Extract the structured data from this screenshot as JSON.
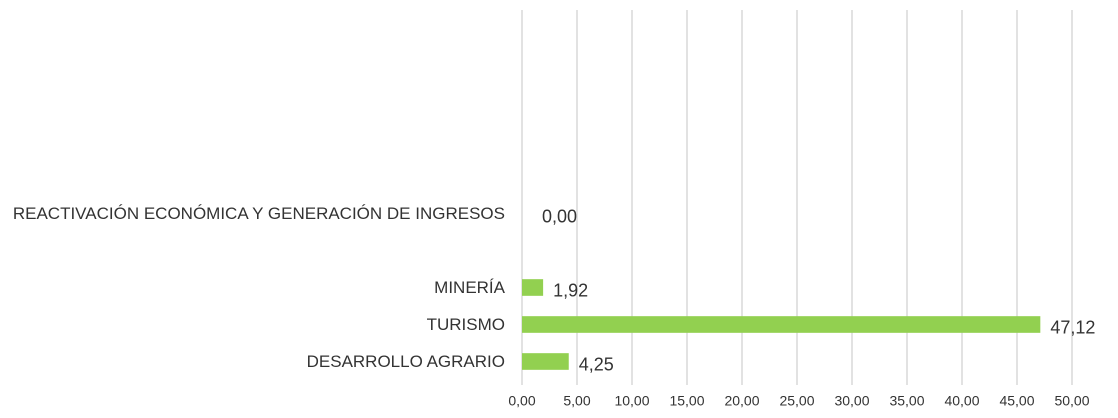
{
  "chart_data": {
    "type": "bar",
    "orientation": "horizontal",
    "categories": [
      null,
      null,
      null,
      null,
      null,
      "REACTIVACIÓN ECONÓMICA Y GENERACIÓN DE INGRESOS",
      null,
      "MINERÍA",
      "TURISMO",
      "DESARROLLO AGRARIO"
    ],
    "values": [
      null,
      null,
      null,
      null,
      null,
      0.0,
      null,
      1.92,
      47.12,
      4.25
    ],
    "value_labels": [
      null,
      null,
      null,
      null,
      null,
      "0,00",
      null,
      "1,92",
      "47,12",
      "4,25"
    ],
    "color": "#92d050",
    "xlim": [
      0,
      50
    ],
    "xticks": [
      {
        "value": 0,
        "label": "0,00"
      },
      {
        "value": 5,
        "label": "5,00"
      },
      {
        "value": 10,
        "label": "10,00"
      },
      {
        "value": 15,
        "label": "15,00"
      },
      {
        "value": 20,
        "label": "20,00"
      },
      {
        "value": 25,
        "label": "25,00"
      },
      {
        "value": 30,
        "label": "30,00"
      },
      {
        "value": 35,
        "label": "35,00"
      },
      {
        "value": 40,
        "label": "40,00"
      },
      {
        "value": 45,
        "label": "45,00"
      },
      {
        "value": 50,
        "label": "50,00"
      }
    ],
    "grid": true
  }
}
